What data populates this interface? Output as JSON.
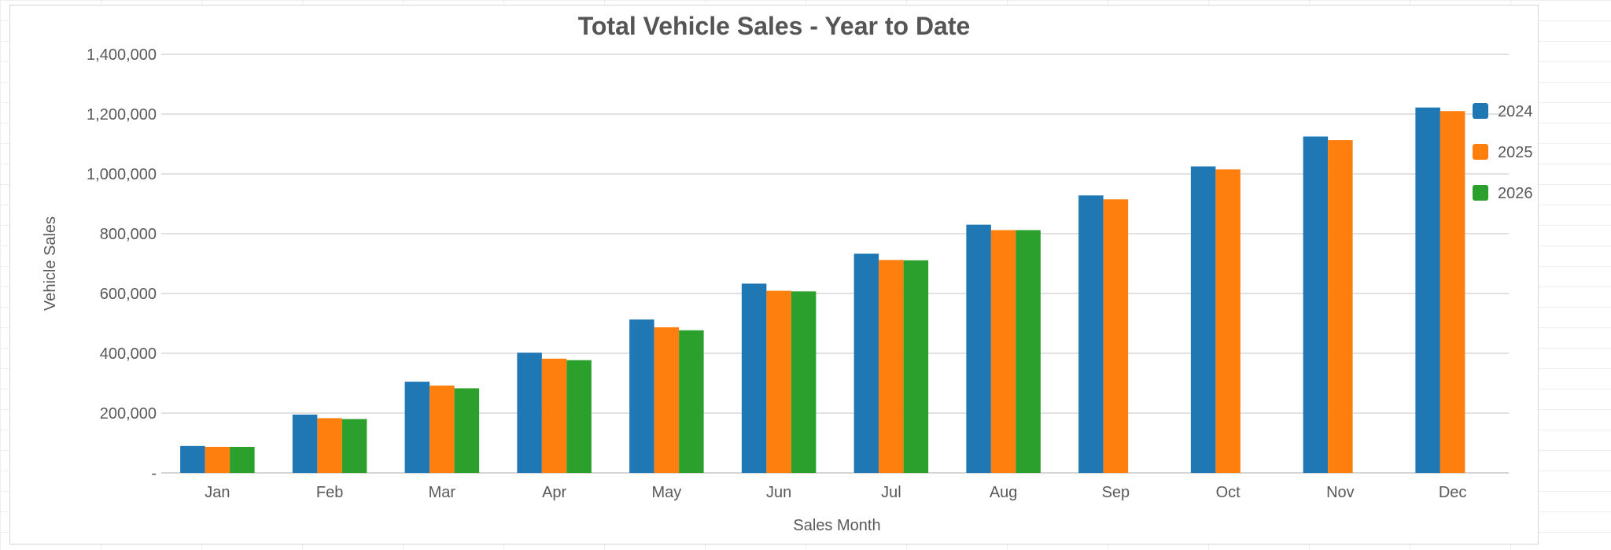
{
  "chart_data": {
    "type": "bar",
    "title": "Total Vehicle Sales - Year to Date",
    "xlabel": "Sales Month",
    "ylabel": "Vehicle Sales",
    "categories": [
      "Jan",
      "Feb",
      "Mar",
      "Apr",
      "May",
      "Jun",
      "Jul",
      "Aug",
      "Sep",
      "Oct",
      "Nov",
      "Dec"
    ],
    "ylim": [
      0,
      1400000
    ],
    "yticks": [
      {
        "value": 0,
        "label": "-"
      },
      {
        "value": 200000,
        "label": "200,000"
      },
      {
        "value": 400000,
        "label": "400,000"
      },
      {
        "value": 600000,
        "label": "600,000"
      },
      {
        "value": 800000,
        "label": "800,000"
      },
      {
        "value": 1000000,
        "label": "1,000,000"
      },
      {
        "value": 1200000,
        "label": "1,200,000"
      },
      {
        "value": 1400000,
        "label": "1,400,000"
      }
    ],
    "grid": true,
    "legend_position": "right",
    "series": [
      {
        "name": "2024",
        "color": "#1f77b4",
        "values": [
          90000,
          195000,
          305000,
          402000,
          513000,
          633000,
          733000,
          830000,
          928000,
          1025000,
          1125000,
          1222000
        ]
      },
      {
        "name": "2025",
        "color": "#ff7f0e",
        "values": [
          87000,
          183000,
          292000,
          382000,
          487000,
          609000,
          712000,
          812000,
          915000,
          1015000,
          1113000,
          1210000
        ]
      },
      {
        "name": "2026",
        "color": "#2ca02c",
        "values": [
          87000,
          180000,
          283000,
          377000,
          477000,
          607000,
          711000,
          812000,
          null,
          null,
          null,
          null
        ]
      }
    ]
  }
}
